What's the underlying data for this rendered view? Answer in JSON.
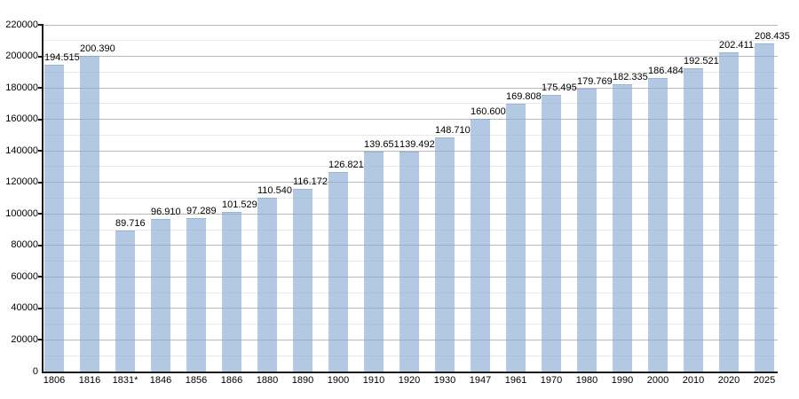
{
  "chart_data": {
    "type": "bar",
    "title": "",
    "xlabel": "",
    "ylabel": "",
    "categories": [
      "1806",
      "1816",
      "1831*",
      "1846",
      "1856",
      "1866",
      "1880",
      "1890",
      "1900",
      "1910",
      "1920",
      "1930",
      "1947",
      "1961",
      "1970",
      "1980",
      "1990",
      "2000",
      "2010",
      "2020",
      "2025"
    ],
    "values": [
      194515,
      200390,
      89716,
      96910,
      97289,
      101529,
      110540,
      116172,
      126821,
      139651,
      139492,
      148710,
      160600,
      169808,
      175495,
      179769,
      182335,
      186484,
      192521,
      202411,
      208435
    ],
    "value_labels": [
      "194.515",
      "200.390",
      "89.716",
      "96.910",
      "97.289",
      "101.529",
      "110.540",
      "116.172",
      "126.821",
      "139.651",
      "139.492",
      "148.710",
      "160.600",
      "169.808",
      "175.495",
      "179.769",
      "182.335",
      "186.484",
      "192.521",
      "202.411",
      "208.435"
    ],
    "ylim": [
      0,
      220000
    ],
    "y_major_step": 20000,
    "y_minor_step": 10000,
    "y_tick_labels": [
      "0",
      "20000",
      "40000",
      "60000",
      "80000",
      "100000",
      "120000",
      "140000",
      "160000",
      "180000",
      "200000",
      "220000"
    ],
    "grid": "horizontal, major and minor, behind bars",
    "legend": "none",
    "colors": {
      "bar_fill": "rgba(140,172,213,0.66)",
      "bar_border": "rgba(120,156,200,0.45)",
      "axis": "#1a1a1a",
      "major_grid": "#b8b8b8",
      "minor_grid": "#e9e9e9",
      "text": "#000000",
      "background": "#ffffff"
    }
  }
}
